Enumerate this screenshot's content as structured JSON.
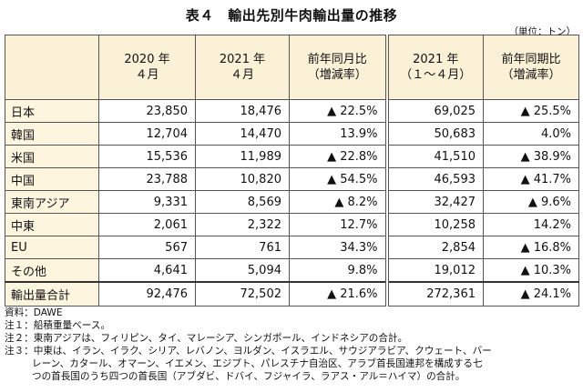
{
  "title": "表４　輸出先別牛肉輸出量の推移",
  "unit": "（単位：トン）",
  "headers": {
    "h1_line1": "2020 年",
    "h1_line2": "４月",
    "h2_line1": "2021 年",
    "h2_line2": "４月",
    "h3_line1": "前年同月比",
    "h3_line2": "（増減率）",
    "h4_line1": "2021 年",
    "h4_line2": "（１～４月）",
    "h5_line1": "前年同期比",
    "h5_line2": "（増減率）"
  },
  "rows": [
    [
      "日本",
      "23,850",
      "18,476",
      "▲ 22.5%",
      "69,025",
      "▲ 25.5%"
    ],
    [
      "韓国",
      "12,704",
      "14,470",
      "13.9%",
      "50,683",
      "4.0%"
    ],
    [
      "米国",
      "15,536",
      "11,989",
      "▲ 22.8%",
      "41,510",
      "▲ 38.9%"
    ],
    [
      "中国",
      "23,788",
      "10,820",
      "▲ 54.5%",
      "46,593",
      "▲ 41.7%"
    ],
    [
      "東南アジア",
      "9,331",
      "8,569",
      "▲ 8.2%",
      "32,427",
      "▲ 9.6%"
    ],
    [
      "中東",
      "2,061",
      "2,322",
      "12.7%",
      "10,258",
      "14.2%"
    ],
    [
      "EU",
      "567",
      "761",
      "34.3%",
      "2,854",
      "▲ 16.8%"
    ],
    [
      "その他",
      "4,641",
      "5,094",
      "9.8%",
      "19,012",
      "▲ 10.3%"
    ]
  ],
  "total": [
    "輸出量合計",
    "92,476",
    "72,502",
    "▲ 21.6%",
    "272,361",
    "▲ 24.1%"
  ],
  "notes": {
    "source": "資料：DAWE",
    "n1": "注１：船積重量ベース。",
    "n2": "注２：東南アジアは、フィリピン、タイ、マレーシア、シンガポール、インドネシアの合計。",
    "n3a": "注３：中東は、イラン、イラク、シリア、レバノン、ヨルダン、イスラエル、サウジアラビア、クウェート、バー",
    "n3b": "レーン、カタール、オマーン、イエメン、エジプト、パレスチナ自治区、アラブ首長国連邦を構成する七",
    "n3c": "つの首長国のうち四つの首長国（アブダビ、ドバイ、フジャイラ、ラアス・アル＝ハイマ）の合計。"
  }
}
